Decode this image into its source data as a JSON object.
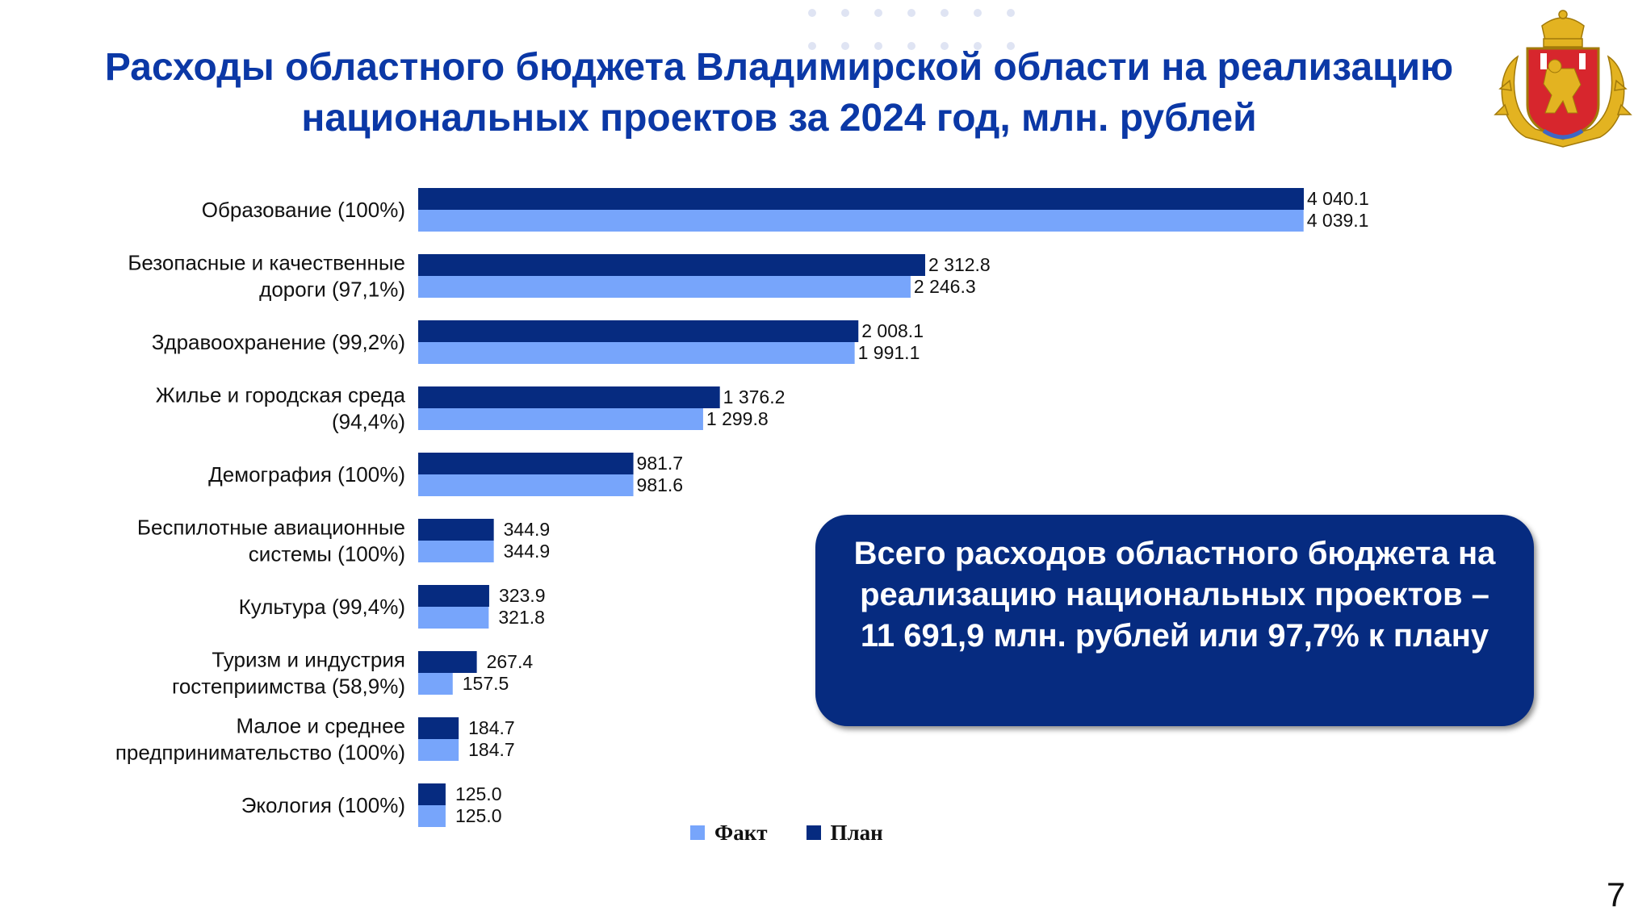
{
  "title": {
    "line1": "Расходы областного бюджета Владимирской области на реализацию",
    "line2": "национальных проектов за 2024 год, млн. рублей"
  },
  "emblem": {
    "name": "vladimir-oblast-coat-of-arms-icon"
  },
  "colors": {
    "plan": "#062b80",
    "fact": "#77a5fb",
    "title": "#0b38a6",
    "box": "#062b80"
  },
  "chart_data": {
    "type": "bar",
    "orientation": "horizontal",
    "categories": [
      [
        "Образование (100%)"
      ],
      [
        "Безопасные и качественные",
        "дороги (97,1%)"
      ],
      [
        "Здравоохранение (99,2%)"
      ],
      [
        "Жилье и городская среда",
        "(94,4%)"
      ],
      [
        "Демография (100%)"
      ],
      [
        "Беспилотные авиационные",
        "системы (100%)"
      ],
      [
        "Культура (99,4%)"
      ],
      [
        "Туризм и индустрия",
        "гостеприимства (58,9%)"
      ],
      [
        "Малое и среднее",
        "предпринимательство (100%)"
      ],
      [
        "Экология (100%)"
      ]
    ],
    "series": [
      {
        "name": "План",
        "values": [
          4040.1,
          2312.8,
          2008.1,
          1376.2,
          981.7,
          344.9,
          323.9,
          267.4,
          184.7,
          125.0
        ],
        "labels": [
          "4 040.1",
          "2 312.8",
          "2 008.1",
          "1 376.2",
          "981.7",
          "344.9",
          "323.9",
          "267.4",
          "184.7",
          "125.0"
        ]
      },
      {
        "name": "Факт",
        "values": [
          4039.1,
          2246.3,
          1991.1,
          1299.8,
          981.6,
          344.9,
          321.8,
          157.5,
          184.7,
          125.0
        ],
        "labels": [
          "4 039.1",
          "2 246.3",
          "1 991.1",
          "1 299.8",
          "981.6",
          "344.9",
          "321.8",
          "157.5",
          "184.7",
          "125.0"
        ]
      }
    ],
    "xlim": [
      0,
      4040.1
    ],
    "grid": false,
    "legend_position": "bottom"
  },
  "legend": {
    "fact_label": "Факт",
    "plan_label": "План"
  },
  "total": {
    "line1": "Всего расходов областного бюджета на",
    "line2": "реализацию национальных проектов –",
    "line3": "11 691,9 млн. рублей или 97,7% к плану"
  },
  "page_number": "7"
}
